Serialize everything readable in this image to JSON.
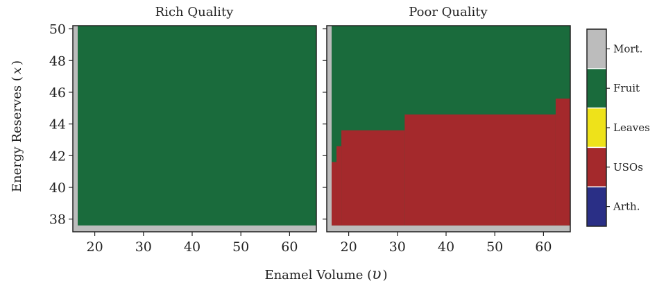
{
  "colors": {
    "Mort.": "#bcbcbc",
    "Fruit": "#1a6b3c",
    "Leaves": "#eee21a",
    "USOs": "#a4292c",
    "Arth.": "#2a2f86"
  },
  "colorbar_labels": [
    "Mort.",
    "Fruit",
    "Leaves",
    "USOs",
    "Arth."
  ],
  "axes": {
    "xlabel_text": "Enamel Volume (",
    "xlabel_symbol": "υ",
    "xlabel_close": ")",
    "ylabel_text": "Energy Reserves (",
    "ylabel_symbol": "x",
    "ylabel_close": ")"
  },
  "chart_data": [
    {
      "type": "heatmap",
      "title": "Rich Quality",
      "xlim": [
        15.5,
        65.5
      ],
      "ylim": [
        37.2,
        50.2
      ],
      "xticks": [
        20,
        30,
        40,
        50,
        60
      ],
      "yticks": [
        38,
        40,
        42,
        44,
        46,
        48,
        50
      ],
      "background": "Mort.",
      "regions": [
        {
          "label": "Fruit",
          "x0": 16.5,
          "x1": 65.5,
          "y0": 37.6,
          "y1": 50.2
        }
      ]
    },
    {
      "type": "heatmap",
      "title": "Poor Quality",
      "xlim": [
        15.5,
        65.5
      ],
      "ylim": [
        37.2,
        50.2
      ],
      "xticks": [
        20,
        30,
        40,
        50,
        60
      ],
      "yticks": [
        38,
        40,
        42,
        44,
        46,
        48,
        50
      ],
      "background": "Mort.",
      "regions": [
        {
          "label": "Fruit",
          "x0": 16.5,
          "x1": 65.5,
          "y0": 37.6,
          "y1": 50.2
        },
        {
          "label": "USOs",
          "x0": 16.5,
          "x1": 17.5,
          "y0": 37.6,
          "y1": 41.6
        },
        {
          "label": "USOs",
          "x0": 17.5,
          "x1": 18.5,
          "y0": 37.6,
          "y1": 42.6
        },
        {
          "label": "USOs",
          "x0": 18.5,
          "x1": 31.5,
          "y0": 37.6,
          "y1": 43.6
        },
        {
          "label": "USOs",
          "x0": 31.5,
          "x1": 62.5,
          "y0": 37.6,
          "y1": 44.6
        },
        {
          "label": "USOs",
          "x0": 62.5,
          "x1": 65.5,
          "y0": 37.6,
          "y1": 45.6
        }
      ]
    }
  ]
}
